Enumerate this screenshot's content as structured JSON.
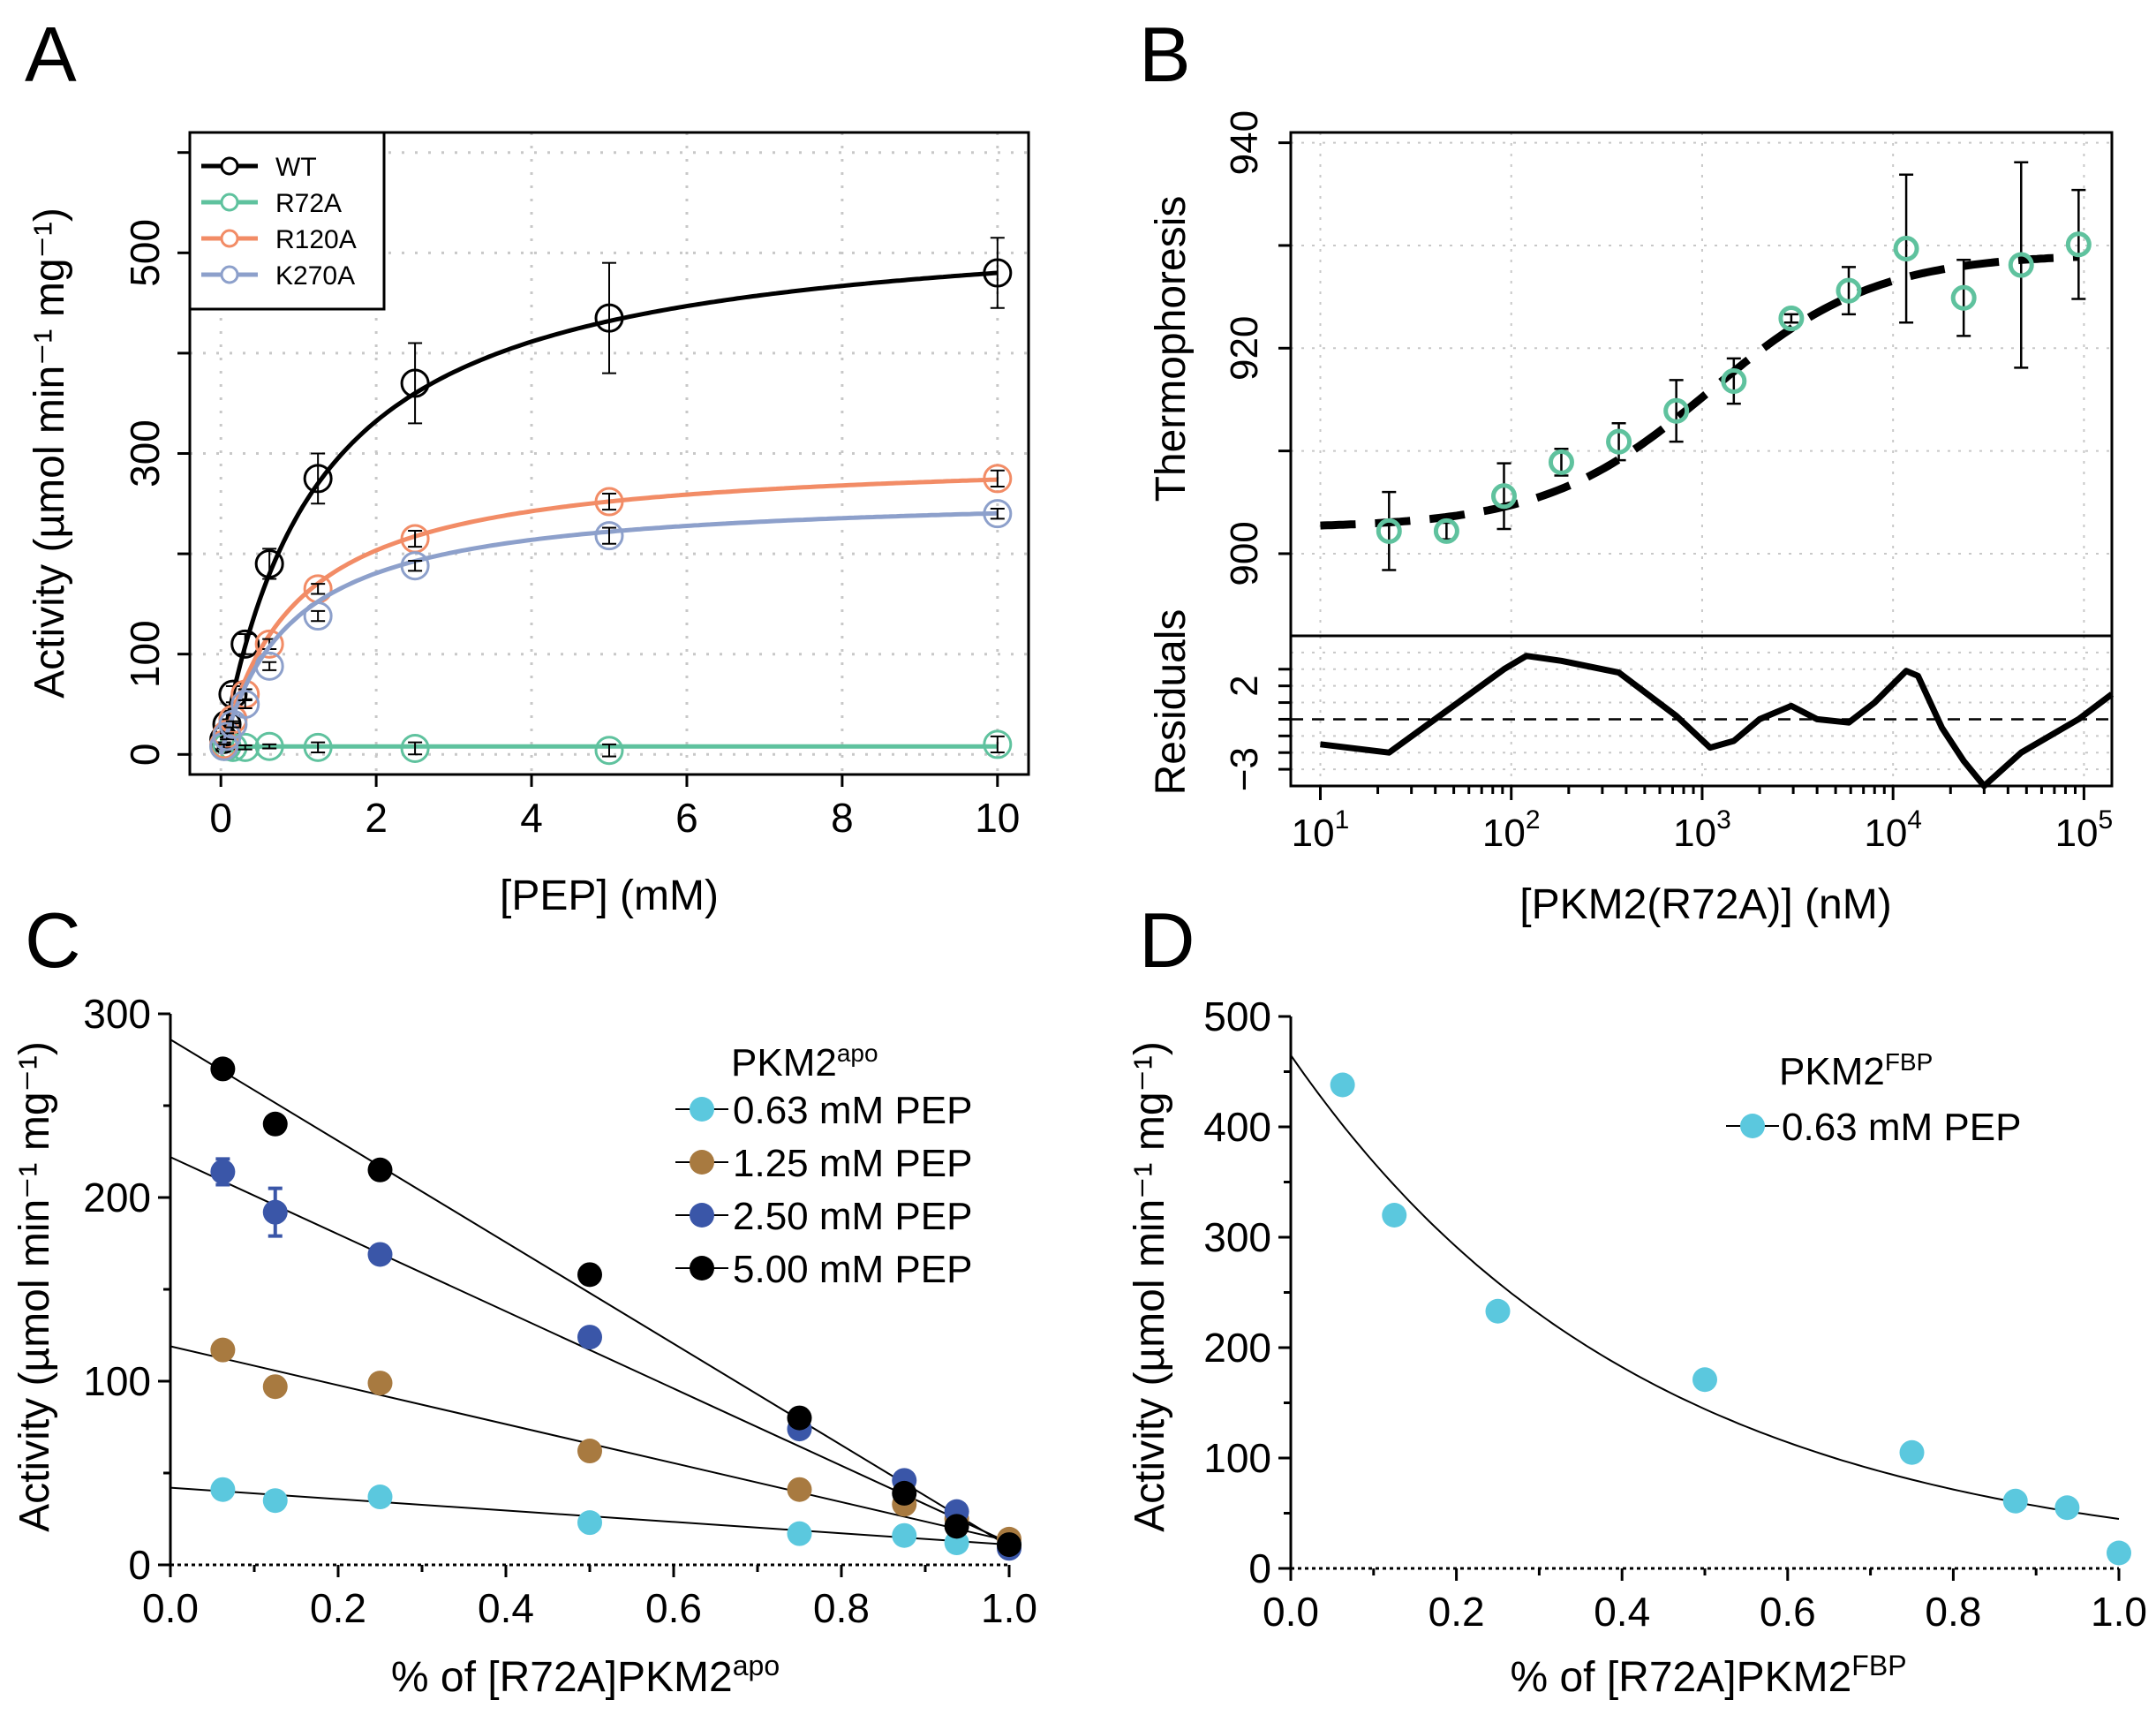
{
  "chart_data": [
    {
      "panel": "A",
      "type": "scatter",
      "xlabel": "[PEP] (mM)",
      "ylabel": "Activity (µmol   min⁻¹ mg⁻¹)",
      "xlim": [
        -0.4,
        10.4
      ],
      "ylim": [
        -20,
        620
      ],
      "x_ticks": [
        "0",
        "2",
        "4",
        "6",
        "8",
        "10"
      ],
      "y_ticks": [
        "0",
        "100",
        "300",
        "500"
      ],
      "grid": true,
      "legend_position": "top-left",
      "series": [
        {
          "name": "WT",
          "color": "#000000",
          "vmax": 540,
          "km": 1.25,
          "x": [
            0.039,
            0.078,
            0.156,
            0.313,
            0.625,
            1.25,
            2.5,
            5,
            10
          ],
          "y": [
            15,
            30,
            60,
            110,
            190,
            275,
            370,
            435,
            480
          ],
          "err": [
            3,
            5,
            8,
            10,
            15,
            25,
            40,
            55,
            35
          ]
        },
        {
          "name": "R72A",
          "color": "#5fc29e",
          "vmax": 8,
          "km": 0.01,
          "x": [
            0.039,
            0.078,
            0.156,
            0.313,
            0.625,
            1.25,
            2.5,
            5,
            10
          ],
          "y": [
            8,
            8,
            7,
            7,
            8,
            7,
            6,
            4,
            10
          ],
          "err": [
            2,
            2,
            2,
            2,
            2,
            5,
            6,
            6,
            8
          ]
        },
        {
          "name": "R120A",
          "color": "#f28c66",
          "vmax": 300,
          "km": 0.95,
          "x": [
            0.039,
            0.078,
            0.156,
            0.313,
            0.625,
            1.25,
            2.5,
            5,
            10
          ],
          "y": [
            10,
            20,
            35,
            60,
            110,
            165,
            215,
            252,
            275
          ],
          "err": [
            2,
            3,
            4,
            5,
            5,
            5,
            8,
            8,
            8
          ]
        },
        {
          "name": "K270A",
          "color": "#8da0cb",
          "vmax": 262,
          "km": 0.9,
          "x": [
            0.039,
            0.078,
            0.156,
            0.313,
            0.625,
            1.25,
            2.5,
            5,
            10
          ],
          "y": [
            8,
            18,
            30,
            50,
            88,
            138,
            188,
            218,
            240
          ],
          "err": [
            2,
            3,
            3,
            4,
            4,
            5,
            5,
            8,
            5
          ]
        }
      ]
    },
    {
      "panel": "B",
      "type": "scatter",
      "xlabel": "[PKM2(R72A)] (nM)",
      "ylabel_top": "Thermophoresis",
      "ylabel_bottom": "Residuals",
      "x_scale": "log",
      "xlim": [
        7,
        140000
      ],
      "ylim_top": [
        892,
        941
      ],
      "ylim_bottom": [
        -4,
        5
      ],
      "x_tick_labels": [
        {
          "base": "10",
          "exp": "1"
        },
        {
          "base": "10",
          "exp": "2"
        },
        {
          "base": "10",
          "exp": "3"
        },
        {
          "base": "10",
          "exp": "4"
        },
        {
          "base": "10",
          "exp": "5"
        }
      ],
      "y_ticks_top": [
        "900",
        "920",
        "940"
      ],
      "y_ticks_bottom": [
        "2",
        "−3"
      ],
      "grid": true,
      "points_color": "#5fc29e",
      "points": {
        "x": [
          22.9,
          45.8,
          91.6,
          183,
          366,
          732,
          1465,
          2930,
          5860,
          11720,
          23440,
          46880,
          93750
        ],
        "y": [
          902.2,
          902.2,
          905.6,
          908.9,
          910.9,
          913.9,
          916.8,
          922.9,
          925.6,
          929.7,
          924.9,
          928.1,
          930.1
        ],
        "err": [
          3.8,
          0.8,
          3.2,
          1.3,
          1.8,
          3.0,
          2.2,
          0.4,
          2.3,
          7.2,
          3.7,
          10.0,
          5.3
        ]
      },
      "fit": {
        "bottom": 902.5,
        "top": 929.2,
        "kd_nM": 1100,
        "hill": 1.0
      },
      "residuals": {
        "x": [
          10,
          22.9,
          45.8,
          91.6,
          120,
          183,
          366,
          732,
          1100,
          1465,
          2000,
          2930,
          4000,
          5860,
          8000,
          11720,
          13500,
          18000,
          23440,
          30000,
          46880,
          93750,
          140000
        ],
        "y": [
          -1.5,
          -2.0,
          0.5,
          3.0,
          3.8,
          3.5,
          2.8,
          0.2,
          -1.7,
          -1.3,
          0.0,
          0.8,
          0.0,
          -0.2,
          1.0,
          2.9,
          2.6,
          -0.5,
          -2.5,
          -4.0,
          -2.0,
          0.0,
          1.5
        ]
      }
    },
    {
      "panel": "C",
      "type": "scatter",
      "xlabel_main": "% of [R72A]PKM2",
      "xlabel_sup": "apo",
      "ylabel": "Activity (µmol min⁻¹ mg⁻¹)",
      "xlim": [
        0,
        1.0
      ],
      "ylim": [
        0,
        300
      ],
      "x_ticks": [
        "0.0",
        "0.2",
        "0.4",
        "0.6",
        "0.8",
        "1.0"
      ],
      "y_ticks": [
        "0",
        "100",
        "200",
        "300"
      ],
      "legend_position": "top-right",
      "legend_title_main": "PKM2",
      "legend_title_sup": "apo",
      "series": [
        {
          "name": "0.63 mM PEP",
          "color": "#5bc8de",
          "x": [
            0.0625,
            0.125,
            0.25,
            0.5,
            0.75,
            0.875,
            0.9375,
            1.0
          ],
          "y": [
            41,
            35,
            37,
            23,
            17,
            16,
            12,
            11
          ],
          "fit": [
            42,
            11
          ]
        },
        {
          "name": "1.25 mM PEP",
          "color": "#a87a40",
          "x": [
            0.0625,
            0.125,
            0.25,
            0.5,
            0.75,
            0.875,
            0.9375,
            1.0
          ],
          "y": [
            117,
            97,
            99,
            62,
            41,
            33,
            25,
            14
          ],
          "fit": [
            119,
            13
          ]
        },
        {
          "name": "2.50 mM PEP",
          "color": "#3a56a8",
          "x": [
            0.0625,
            0.125,
            0.25,
            0.5,
            0.75,
            0.875,
            0.9375,
            1.0
          ],
          "y": [
            214,
            192,
            169,
            124,
            74,
            46,
            29,
            9
          ],
          "err": [
            7,
            13,
            0,
            0,
            0,
            0,
            0,
            0
          ],
          "fit": [
            222,
            12
          ]
        },
        {
          "name": "5.00 mM PEP",
          "color": "#000000",
          "x": [
            0.0625,
            0.125,
            0.25,
            0.5,
            0.75,
            0.875,
            0.9375,
            1.0
          ],
          "y": [
            270,
            240,
            215,
            158,
            80,
            39,
            21,
            11
          ],
          "fit": [
            286,
            10
          ]
        }
      ]
    },
    {
      "panel": "D",
      "type": "scatter",
      "xlabel_main": "% of [R72A]PKM2",
      "xlabel_sup": "FBP",
      "ylabel": "Activity (µmol min⁻¹ mg⁻¹)",
      "xlim": [
        0,
        1.0
      ],
      "ylim": [
        0,
        500
      ],
      "x_ticks": [
        "0.0",
        "0.2",
        "0.4",
        "0.6",
        "0.8",
        "1.0"
      ],
      "y_ticks": [
        "0",
        "100",
        "200",
        "300",
        "400",
        "500"
      ],
      "legend_position": "top-right",
      "legend_title_main": "PKM2",
      "legend_title_sup": "FBP",
      "series": [
        {
          "name": "0.63 mM PEP",
          "color": "#5bc8de",
          "x": [
            0.0625,
            0.125,
            0.25,
            0.5,
            0.75,
            0.875,
            0.9375,
            1.0
          ],
          "y": [
            438,
            320,
            233,
            171,
            105,
            61,
            55,
            14
          ],
          "fit": {
            "a": 465,
            "k": 2.34
          }
        }
      ]
    }
  ],
  "panels": {
    "a": "A",
    "b": "B",
    "c": "C",
    "d": "D"
  }
}
